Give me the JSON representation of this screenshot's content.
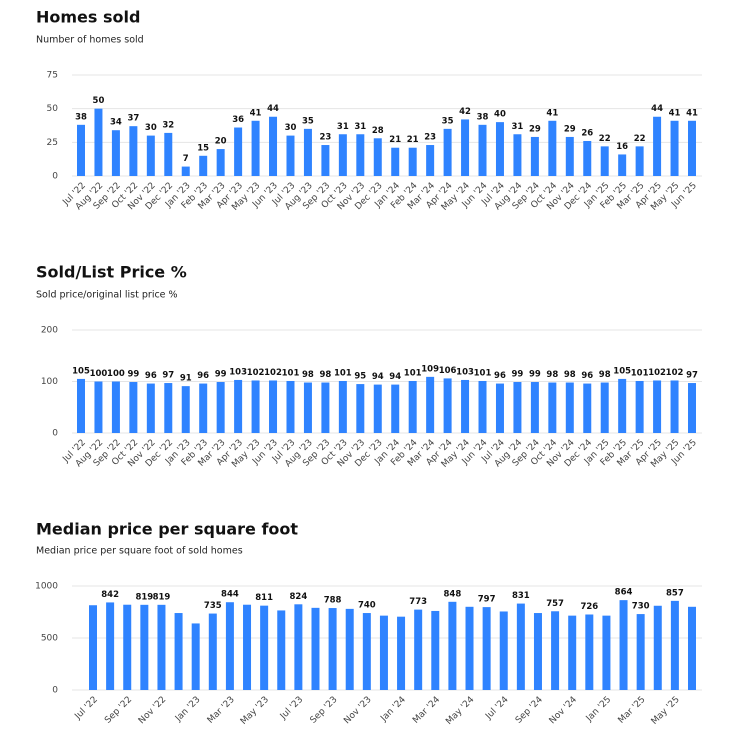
{
  "chart_data": [
    {
      "type": "bar",
      "title": "Homes sold",
      "subtitle": "Number of homes sold",
      "categories": [
        "Jul '22",
        "Aug '22",
        "Sep '22",
        "Oct '22",
        "Nov '22",
        "Dec '22",
        "Jan '23",
        "Feb '23",
        "Mar '23",
        "Apr '23",
        "May '23",
        "Jun '23",
        "Jul '23",
        "Aug '23",
        "Sep '23",
        "Oct '23",
        "Nov '23",
        "Dec '23",
        "Jan '24",
        "Feb '24",
        "Mar '24",
        "Apr '24",
        "May '24",
        "Jun '24",
        "Jul '24",
        "Aug '24",
        "Sep '24",
        "Oct '24",
        "Nov '24",
        "Dec '24",
        "Jan '25",
        "Feb '25",
        "Mar '25",
        "Apr '25",
        "May '25",
        "Jun '25"
      ],
      "values": [
        38,
        50,
        34,
        37,
        30,
        32,
        7,
        15,
        20,
        36,
        41,
        44,
        30,
        35,
        23,
        31,
        31,
        28,
        21,
        21,
        23,
        35,
        42,
        38,
        40,
        31,
        29,
        41,
        29,
        26,
        22,
        16,
        22,
        44,
        41,
        41
      ],
      "color": "#2f83ff",
      "ylim": [
        0,
        75
      ],
      "yticks": [
        0,
        25,
        50,
        75
      ],
      "grid": true
    },
    {
      "type": "bar",
      "title": "Sold/List Price %",
      "subtitle": "Sold price/original list price %",
      "categories": [
        "Jul '22",
        "Aug '22",
        "Sep '22",
        "Oct '22",
        "Nov '22",
        "Dec '22",
        "Jan '23",
        "Feb '23",
        "Mar '23",
        "Apr '23",
        "May '23",
        "Jun '23",
        "Jul '23",
        "Aug '23",
        "Sep '23",
        "Oct '23",
        "Nov '23",
        "Dec '23",
        "Jan '24",
        "Feb '24",
        "Mar '24",
        "Apr '24",
        "May '24",
        "Jun '24",
        "Jul '24",
        "Aug '24",
        "Sep '24",
        "Oct '24",
        "Nov '24",
        "Dec '24",
        "Jan '25",
        "Feb '25",
        "Mar '25",
        "Apr '25",
        "May '25",
        "Jun '25"
      ],
      "values": [
        105,
        100,
        100,
        99,
        96,
        97,
        91,
        96,
        99,
        103,
        102,
        102,
        101,
        98,
        98,
        101,
        95,
        94,
        94,
        101,
        109,
        106,
        103,
        101,
        96,
        99,
        99,
        98,
        98,
        96,
        98,
        105,
        101,
        102,
        102,
        97
      ],
      "color": "#2f83ff",
      "ylim": [
        0,
        200
      ],
      "yticks": [
        0,
        100,
        200
      ],
      "grid": true
    },
    {
      "type": "bar",
      "title": "Median price per square foot",
      "subtitle": "Median price per square foot of sold homes",
      "categories": [
        "Jul '22",
        null,
        "Sep '22",
        null,
        "Nov '22",
        null,
        "Jan '23",
        null,
        "Mar '23",
        null,
        "May '23",
        null,
        "Jul '23",
        null,
        "Sep '23",
        null,
        "Nov '23",
        null,
        "Jan '24",
        null,
        "Mar '24",
        null,
        "May '24",
        null,
        "Jul '24",
        null,
        "Sep '24",
        null,
        "Nov '24",
        null,
        "Jan '25",
        null,
        "Mar '25",
        null,
        "May '25",
        null
      ],
      "values": [
        815,
        842,
        820,
        819,
        819,
        740,
        640,
        735,
        844,
        820,
        811,
        765,
        824,
        790,
        788,
        780,
        740,
        715,
        705,
        773,
        760,
        848,
        800,
        797,
        755,
        831,
        740,
        757,
        715,
        726,
        715,
        864,
        730,
        810,
        857,
        800
      ],
      "value_labels": [
        null,
        "842",
        null,
        "819",
        "819",
        null,
        null,
        "735",
        "844",
        null,
        "811",
        null,
        "824",
        null,
        "788",
        null,
        "740",
        null,
        null,
        "773",
        null,
        "848",
        null,
        "797",
        null,
        "831",
        null,
        "757",
        null,
        "726",
        null,
        "864",
        "730",
        null,
        "857",
        null
      ],
      "color": "#2f83ff",
      "ylim": [
        0,
        1000
      ],
      "yticks": [
        0,
        500,
        1000
      ],
      "grid": true
    }
  ]
}
